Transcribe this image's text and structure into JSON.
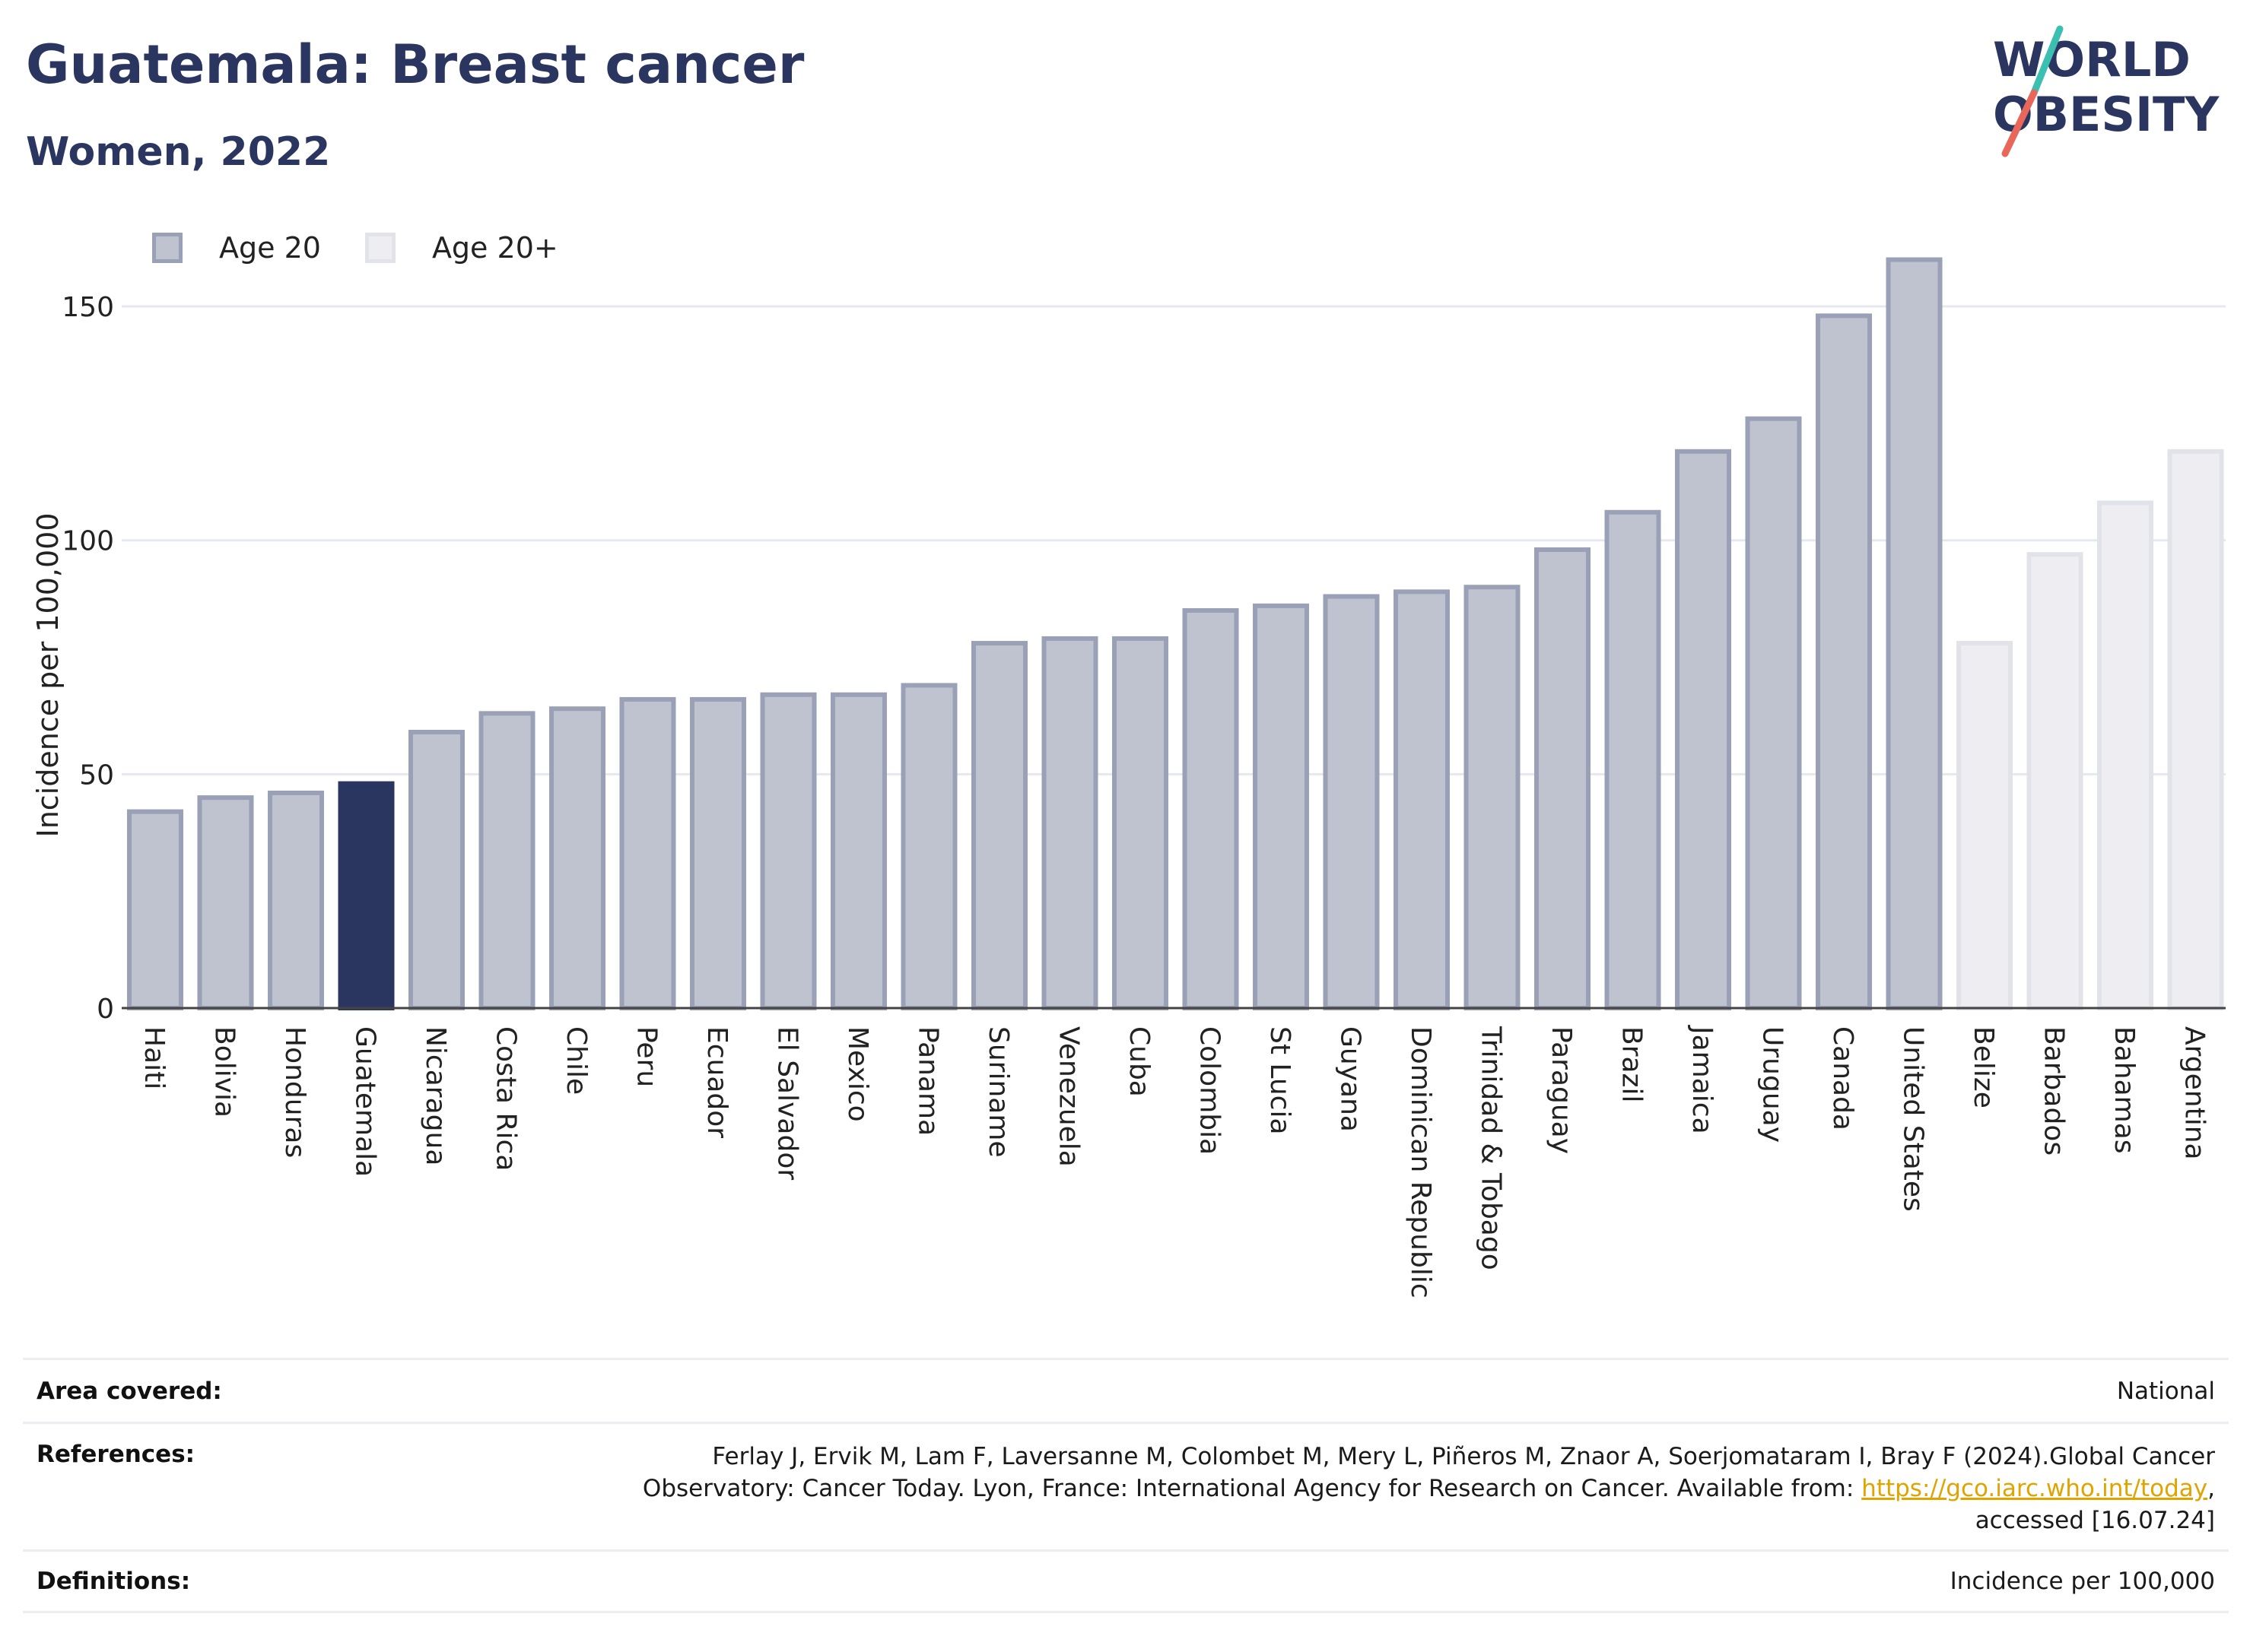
{
  "header": {
    "title": "Guatemala: Breast cancer",
    "subtitle": "Women, 2022"
  },
  "logo": {
    "line1": "WORLD",
    "line2": "OBESITY"
  },
  "legend": {
    "items": [
      {
        "label": "Age 20"
      },
      {
        "label": "Age 20+"
      }
    ]
  },
  "colors": {
    "age20_fill": "#bfc3cf",
    "age20_stroke": "#9aa0b6",
    "age20plus_fill": "#eeeef2",
    "age20plus_stroke": "#e2e3e9",
    "highlight": "#2a3560",
    "logo_accent_teal": "#3bbfb0",
    "logo_accent_red": "#e8665a"
  },
  "chart_data": {
    "type": "bar",
    "title": "Guatemala: Breast cancer",
    "subtitle": "Women, 2022",
    "ylabel": "Incidence per 100,000",
    "xlabel": "",
    "ylim": [
      0,
      170
    ],
    "yticks": [
      0,
      50,
      100,
      150
    ],
    "grid": true,
    "legend_position": "top-left",
    "highlight_category": "Guatemala",
    "categories": [
      "Haiti",
      "Bolivia",
      "Honduras",
      "Guatemala",
      "Nicaragua",
      "Costa Rica",
      "Chile",
      "Peru",
      "Ecuador",
      "El Salvador",
      "Mexico",
      "Panama",
      "Suriname",
      "Venezuela",
      "Cuba",
      "Colombia",
      "St Lucia",
      "Guyana",
      "Dominican Republic",
      "Trinidad & Tobago",
      "Paraguay",
      "Brazil",
      "Jamaica",
      "Uruguay",
      "Canada",
      "United States",
      "Belize",
      "Barbados",
      "Bahamas",
      "Argentina"
    ],
    "values": [
      42,
      45,
      46,
      48,
      59,
      63,
      64,
      66,
      66,
      67,
      67,
      69,
      78,
      79,
      79,
      85,
      86,
      88,
      89,
      90,
      98,
      106,
      119,
      126,
      148,
      160,
      78,
      97,
      108,
      119
    ],
    "series_group": [
      "Age 20",
      "Age 20",
      "Age 20",
      "Age 20",
      "Age 20",
      "Age 20",
      "Age 20",
      "Age 20",
      "Age 20",
      "Age 20",
      "Age 20",
      "Age 20",
      "Age 20",
      "Age 20",
      "Age 20",
      "Age 20",
      "Age 20",
      "Age 20",
      "Age 20",
      "Age 20",
      "Age 20",
      "Age 20",
      "Age 20",
      "Age 20",
      "Age 20",
      "Age 20",
      "Age 20+",
      "Age 20+",
      "Age 20+",
      "Age 20+"
    ]
  },
  "footer": {
    "area_label": "Area covered:",
    "area_value": "National",
    "references_label": "References:",
    "references_line1": "Ferlay J, Ervik M, Lam F, Laversanne M, Colombet M, Mery L, Piñeros M, Znaor A, Soerjomataram I, Bray F (2024).Global Cancer",
    "references_line2_pre": "Observatory: Cancer Today. Lyon, France: International Agency for Research on Cancer. Available from: ",
    "references_link": "https://gco.iarc.who.int/today",
    "references_line2_post": ",",
    "references_line3": "accessed [16.07.24]",
    "definitions_label": "Definitions:",
    "definitions_value": "Incidence per 100,000"
  }
}
